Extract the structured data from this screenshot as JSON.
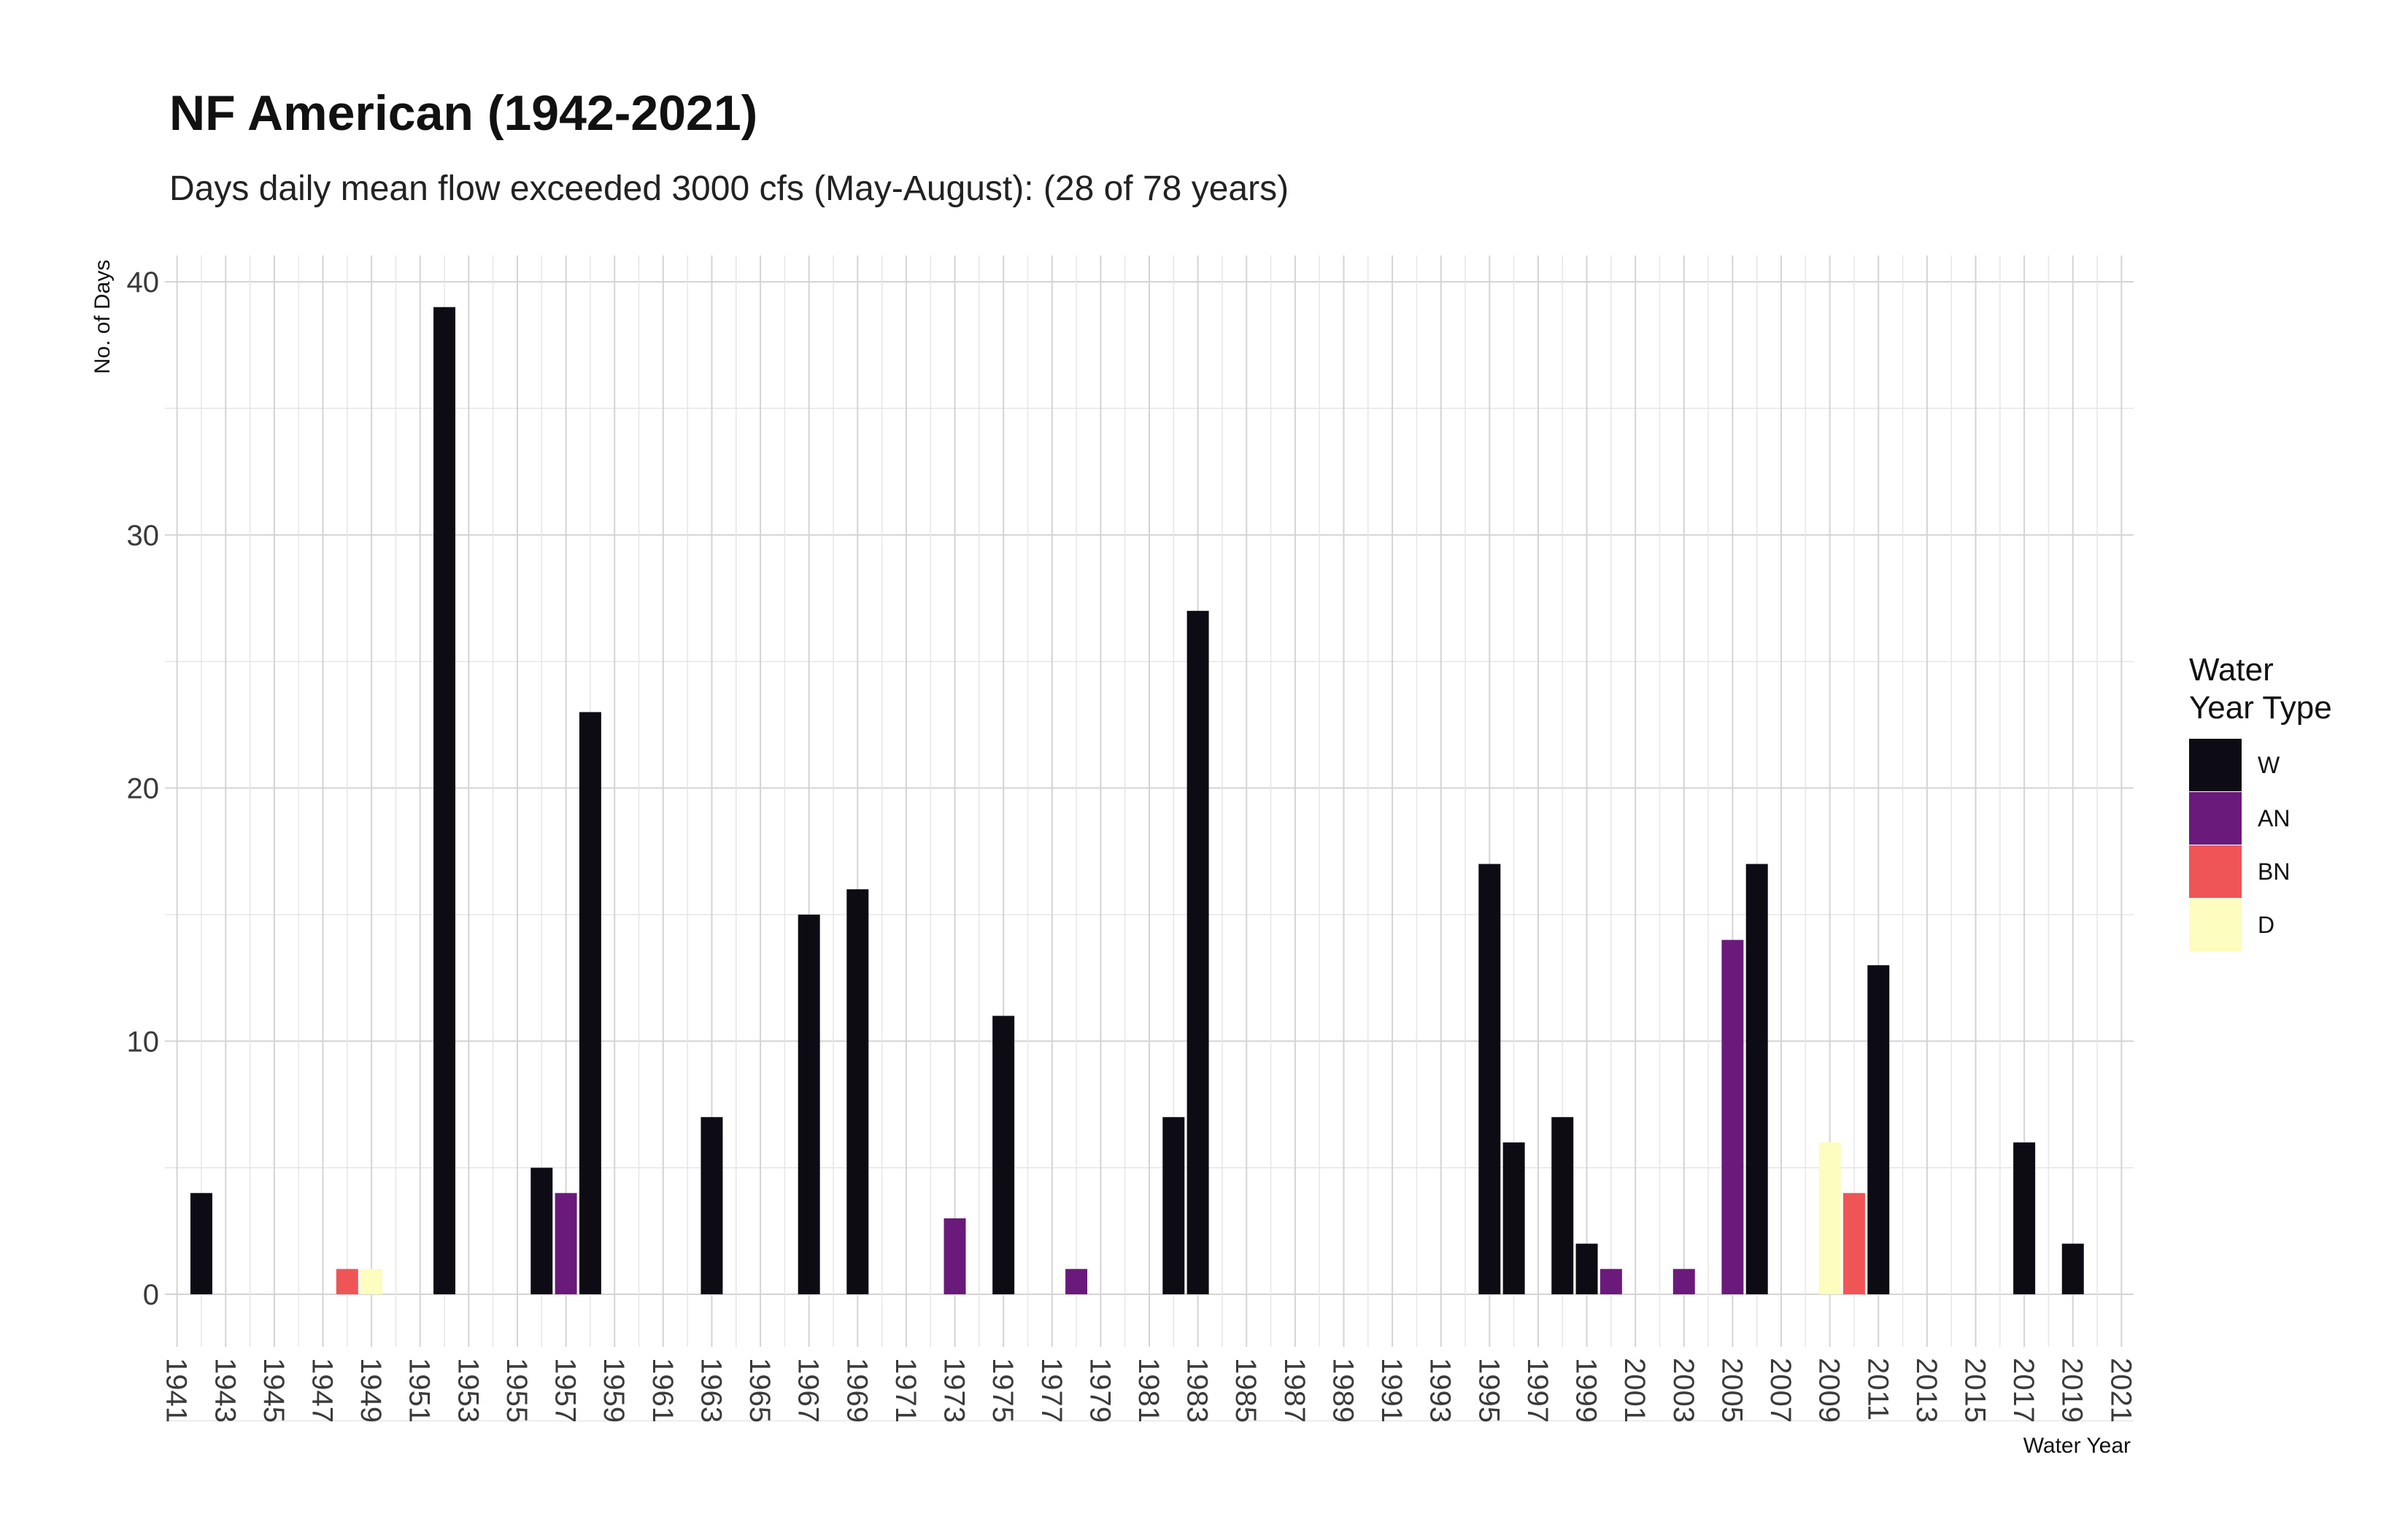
{
  "chart_data": {
    "type": "bar",
    "title": "NF American (1942-2021)",
    "subtitle": "Days daily mean flow exceeded 3000 cfs (May-August): (28 of 78 years)",
    "xlabel": "Water Year",
    "ylabel": "No. of Days",
    "xlim": [
      1941,
      2021
    ],
    "ylim": [
      0,
      40
    ],
    "y_ticks": [
      0,
      10,
      20,
      30,
      40
    ],
    "x_ticks": [
      1941,
      1943,
      1945,
      1947,
      1949,
      1951,
      1953,
      1955,
      1957,
      1959,
      1961,
      1963,
      1965,
      1967,
      1969,
      1971,
      1973,
      1975,
      1977,
      1979,
      1981,
      1983,
      1985,
      1987,
      1989,
      1991,
      1993,
      1995,
      1997,
      1999,
      2001,
      2003,
      2005,
      2007,
      2009,
      2011,
      2013,
      2015,
      2017,
      2019,
      2021
    ],
    "grid": true,
    "legend": {
      "title": "Water\nYear Type",
      "position": "right",
      "entries": [
        {
          "key": "W",
          "label": "W",
          "color": "#0d0b13"
        },
        {
          "key": "AN",
          "label": "AN",
          "color": "#6a1a7a"
        },
        {
          "key": "BN",
          "label": "BN",
          "color": "#ef5556"
        },
        {
          "key": "D",
          "label": "D",
          "color": "#fcfdbf"
        }
      ]
    },
    "series": [
      {
        "x": 1942,
        "value": 4,
        "type": "W"
      },
      {
        "x": 1948,
        "value": 1,
        "type": "BN"
      },
      {
        "x": 1949,
        "value": 1,
        "type": "D"
      },
      {
        "x": 1952,
        "value": 39,
        "type": "W"
      },
      {
        "x": 1956,
        "value": 5,
        "type": "W"
      },
      {
        "x": 1957,
        "value": 4,
        "type": "AN"
      },
      {
        "x": 1958,
        "value": 23,
        "type": "W"
      },
      {
        "x": 1963,
        "value": 7,
        "type": "W"
      },
      {
        "x": 1967,
        "value": 15,
        "type": "W"
      },
      {
        "x": 1969,
        "value": 16,
        "type": "W"
      },
      {
        "x": 1973,
        "value": 3,
        "type": "AN"
      },
      {
        "x": 1975,
        "value": 11,
        "type": "W"
      },
      {
        "x": 1978,
        "value": 1,
        "type": "AN"
      },
      {
        "x": 1982,
        "value": 7,
        "type": "W"
      },
      {
        "x": 1983,
        "value": 27,
        "type": "W"
      },
      {
        "x": 1995,
        "value": 17,
        "type": "W"
      },
      {
        "x": 1996,
        "value": 6,
        "type": "W"
      },
      {
        "x": 1998,
        "value": 7,
        "type": "W"
      },
      {
        "x": 1999,
        "value": 2,
        "type": "W"
      },
      {
        "x": 2000,
        "value": 1,
        "type": "AN"
      },
      {
        "x": 2003,
        "value": 1,
        "type": "AN"
      },
      {
        "x": 2005,
        "value": 14,
        "type": "AN"
      },
      {
        "x": 2006,
        "value": 17,
        "type": "W"
      },
      {
        "x": 2009,
        "value": 6,
        "type": "D"
      },
      {
        "x": 2010,
        "value": 4,
        "type": "BN"
      },
      {
        "x": 2011,
        "value": 13,
        "type": "W"
      },
      {
        "x": 2017,
        "value": 6,
        "type": "W"
      },
      {
        "x": 2019,
        "value": 2,
        "type": "W"
      }
    ]
  }
}
